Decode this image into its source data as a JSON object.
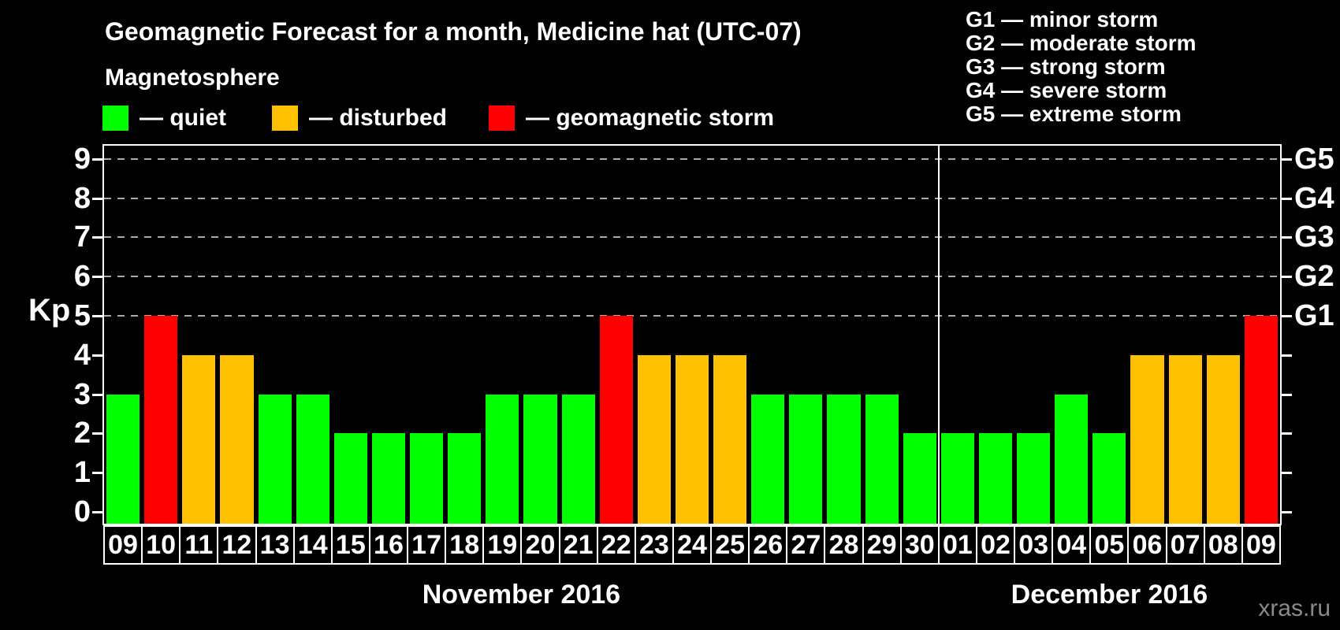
{
  "title": "Geomagnetic Forecast for a month, Medicine hat (UTC-07)",
  "legend": {
    "title": "Magnetosphere",
    "items": [
      {
        "key": "quiet",
        "label": "— quiet",
        "color": "#00ff00"
      },
      {
        "key": "disturbed",
        "label": "— disturbed",
        "color": "#ffc000"
      },
      {
        "key": "storm",
        "label": "— geomagnetic storm",
        "color": "#ff0000"
      }
    ]
  },
  "g_legend": {
    "items": [
      "G1 — minor storm",
      "G2 — moderate storm",
      "G3 — strong storm",
      "G4 — severe storm",
      "G5 — extreme storm"
    ]
  },
  "axes": {
    "y_label": "Kp",
    "y_ticks": [
      0,
      1,
      2,
      3,
      4,
      5,
      6,
      7,
      8,
      9
    ],
    "right_labels": [
      {
        "value": 5,
        "label": "G1"
      },
      {
        "value": 6,
        "label": "G2"
      },
      {
        "value": 7,
        "label": "G3"
      },
      {
        "value": 8,
        "label": "G4"
      },
      {
        "value": 9,
        "label": "G5"
      }
    ]
  },
  "watermark": "xras.ru",
  "chart_data": {
    "type": "bar",
    "title": "Geomagnetic Forecast for a month, Medicine hat (UTC-07)",
    "xlabel": "",
    "ylabel": "Kp",
    "ylim": [
      0,
      9
    ],
    "grid": "dashed horizontal lines at Kp 5,6,7,8,9",
    "legend_position": "top-left",
    "status_colors": {
      "quiet": "#00ff00",
      "disturbed": "#ffc000",
      "storm": "#ff0000"
    },
    "gridline_color": "#aaaaaa",
    "background_color": "#000000",
    "series": [
      {
        "month": "November 2016",
        "days": [
          "09",
          "10",
          "11",
          "12",
          "13",
          "14",
          "15",
          "16",
          "17",
          "18",
          "19",
          "20",
          "21",
          "22",
          "23",
          "24",
          "25",
          "26",
          "27",
          "28",
          "29",
          "30"
        ],
        "kp": [
          3,
          5,
          4,
          4,
          3,
          3,
          2,
          2,
          2,
          2,
          3,
          3,
          3,
          5,
          4,
          4,
          4,
          3,
          3,
          3,
          3,
          2
        ],
        "status": [
          "quiet",
          "storm",
          "disturbed",
          "disturbed",
          "quiet",
          "quiet",
          "quiet",
          "quiet",
          "quiet",
          "quiet",
          "quiet",
          "quiet",
          "quiet",
          "storm",
          "disturbed",
          "disturbed",
          "disturbed",
          "quiet",
          "quiet",
          "quiet",
          "quiet",
          "quiet"
        ]
      },
      {
        "month": "December 2016",
        "days": [
          "01",
          "02",
          "03",
          "04",
          "05",
          "06",
          "07",
          "08",
          "09"
        ],
        "kp": [
          2,
          2,
          2,
          3,
          2,
          4,
          4,
          4,
          5
        ],
        "status": [
          "quiet",
          "quiet",
          "quiet",
          "quiet",
          "quiet",
          "disturbed",
          "disturbed",
          "disturbed",
          "storm"
        ]
      }
    ]
  }
}
